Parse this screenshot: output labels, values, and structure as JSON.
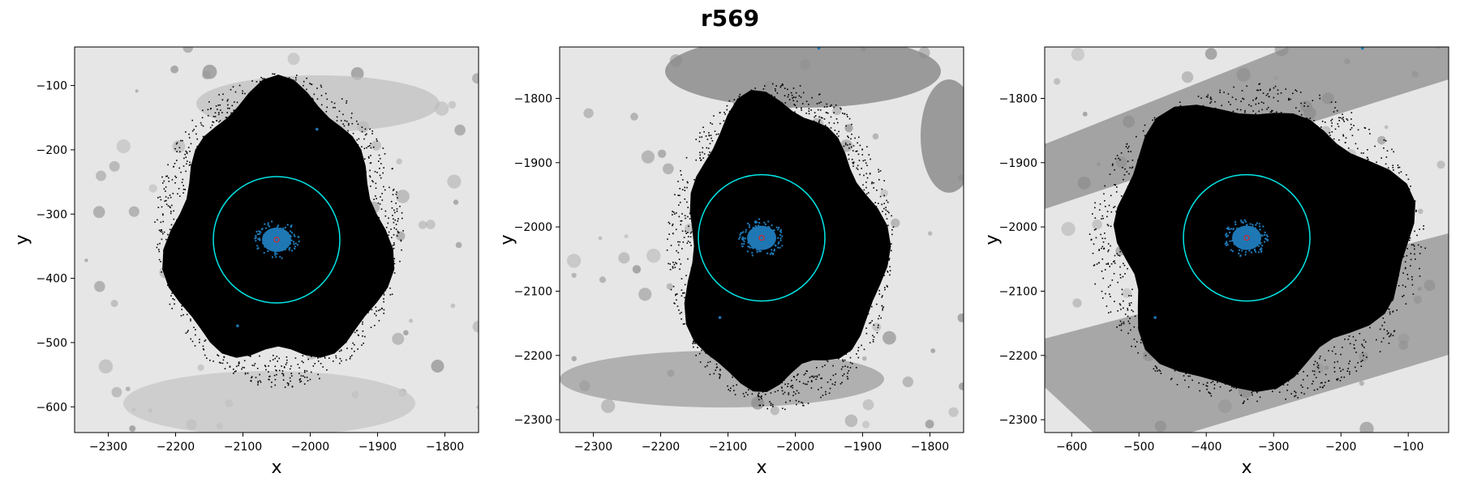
{
  "suptitle": "r569",
  "colors": {
    "points": "#000000",
    "core": "#1f77b4",
    "circle": "#00e5e5",
    "center": "#d62728",
    "background_light": "#e6e6e6",
    "background_dark": "#8c8c8c"
  },
  "chart_data": [
    {
      "type": "scatter",
      "title": "",
      "xlabel": "x",
      "ylabel": "y",
      "xlim": [
        -2350,
        -1750
      ],
      "ylim": [
        -640,
        -40
      ],
      "xticks": [
        -2300,
        -2200,
        -2100,
        -2000,
        -1900,
        -1800
      ],
      "yticks": [
        -600,
        -500,
        -400,
        -300,
        -200,
        -100
      ],
      "center": [
        -2050,
        -340
      ],
      "circle_radius": 94,
      "cloud_extent": {
        "x": [
          -2225,
          -1870
        ],
        "y": [
          -560,
          -90
        ]
      },
      "outlier_points": [
        [
          -2108,
          -474
        ],
        [
          -1990,
          -168
        ]
      ],
      "grid": false
    },
    {
      "type": "scatter",
      "title": "",
      "xlabel": "x",
      "ylabel": "y",
      "xlim": [
        -2350,
        -1750
      ],
      "ylim": [
        -2320,
        -1720
      ],
      "xticks": [
        -2300,
        -2200,
        -2100,
        -2000,
        -1900,
        -1800
      ],
      "yticks": [
        -2300,
        -2200,
        -2100,
        -2000,
        -1900,
        -1800
      ],
      "center": [
        -2050,
        -2017
      ],
      "circle_radius": 94,
      "cloud_extent": {
        "x": [
          -2185,
          -1860
        ],
        "y": [
          -2275,
          -1785
        ]
      },
      "outlier_points": [
        [
          -2112,
          -2141
        ],
        [
          -1965,
          -1722
        ]
      ],
      "grid": false
    },
    {
      "type": "scatter",
      "title": "",
      "xlabel": "x",
      "ylabel": "y",
      "xlim": [
        -640,
        -40
      ],
      "ylim": [
        -2320,
        -1720
      ],
      "xticks": [
        -600,
        -500,
        -400,
        -300,
        -200,
        -100
      ],
      "yticks": [
        -2300,
        -2200,
        -2100,
        -2000,
        -1900,
        -1800
      ],
      "center": [
        -340,
        -2017
      ],
      "circle_radius": 94,
      "cloud_extent": {
        "x": [
          -565,
          -85
        ],
        "y": [
          -2265,
          -1785
        ]
      },
      "outlier_points": [
        [
          -476,
          -2141
        ],
        [
          -168,
          -1722
        ]
      ],
      "grid": false
    }
  ]
}
